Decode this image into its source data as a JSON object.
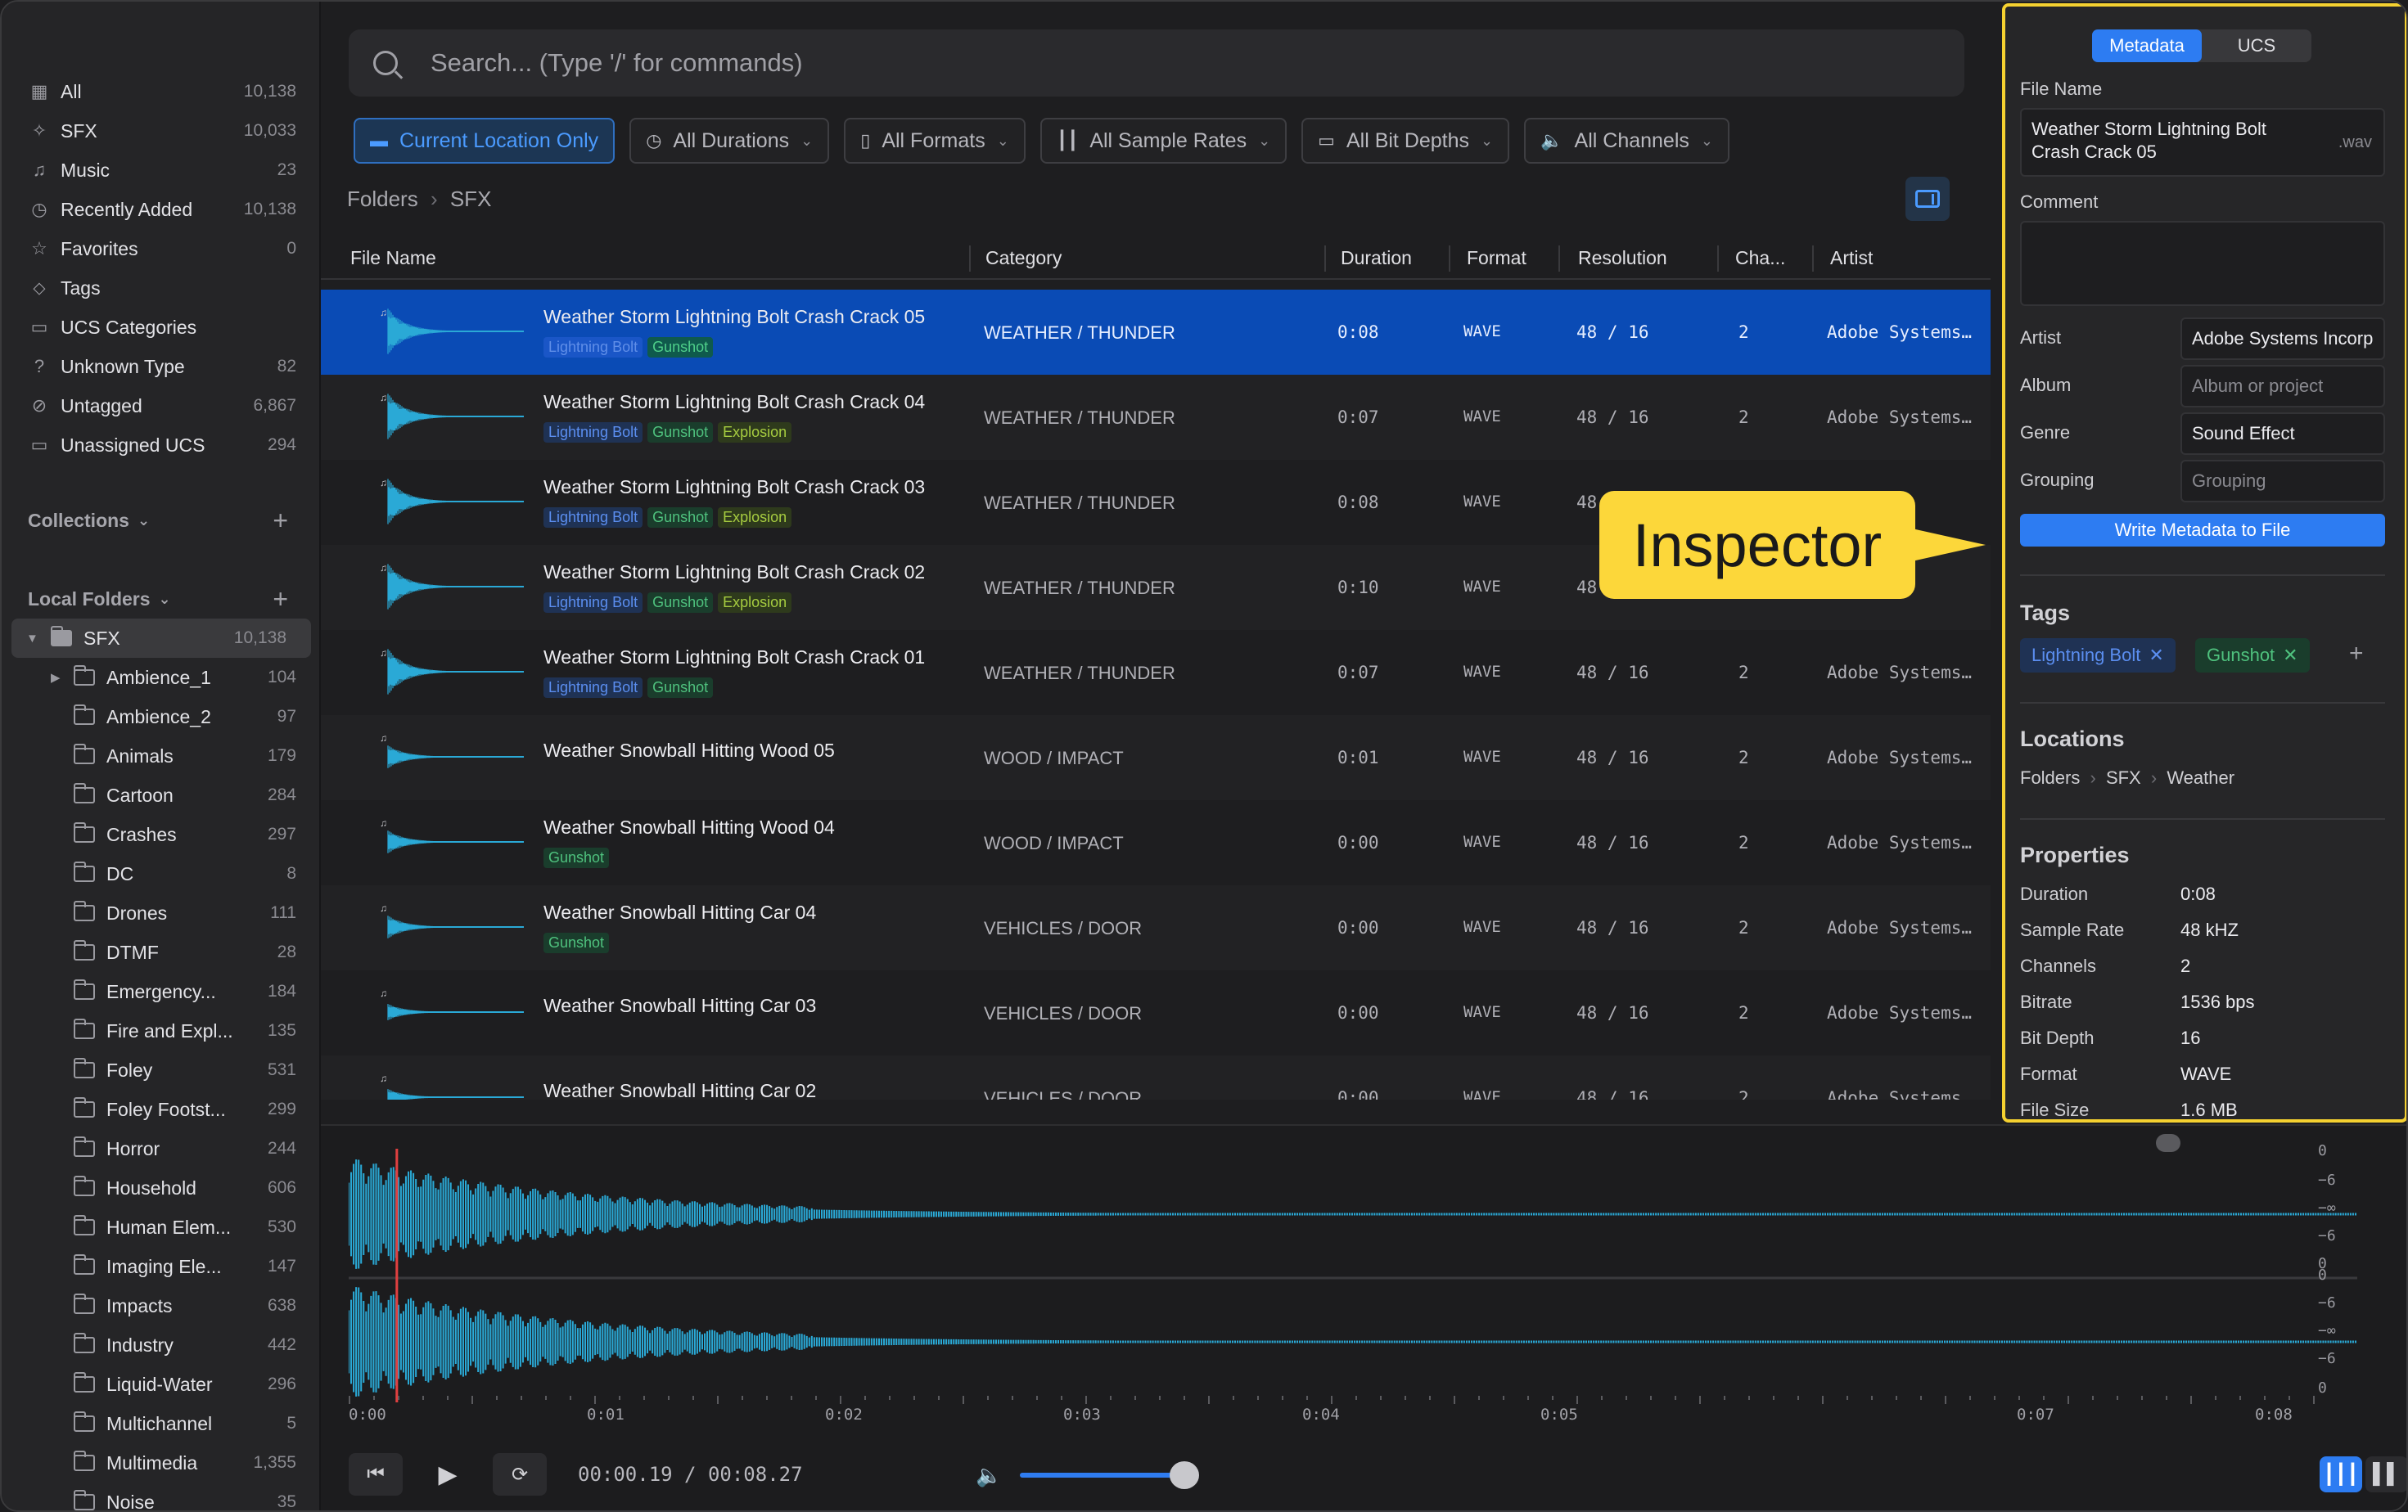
{
  "sidebar": {
    "library": [
      {
        "label": "All",
        "count": "10,138",
        "icon": "grid-icon"
      },
      {
        "label": "SFX",
        "count": "10,033",
        "icon": "sparkle-icon"
      },
      {
        "label": "Music",
        "count": "23",
        "icon": "music-note-icon"
      },
      {
        "label": "Recently Added",
        "count": "10,138",
        "icon": "clock-icon"
      },
      {
        "label": "Favorites",
        "count": "0",
        "icon": "star-icon"
      },
      {
        "label": "Tags",
        "count": "",
        "icon": "tag-icon"
      },
      {
        "label": "UCS Categories",
        "count": "",
        "icon": "folder-icon"
      },
      {
        "label": "Unknown Type",
        "count": "82",
        "icon": "question-icon"
      },
      {
        "label": "Untagged",
        "count": "6,867",
        "icon": "untag-icon"
      },
      {
        "label": "Unassigned UCS",
        "count": "294",
        "icon": "folder-icon"
      }
    ],
    "collections_label": "Collections",
    "local_folders_label": "Local Folders",
    "root_folder": {
      "label": "SFX",
      "count": "10,138"
    },
    "folders": [
      {
        "label": "Ambience_1",
        "count": "104"
      },
      {
        "label": "Ambience_2",
        "count": "97"
      },
      {
        "label": "Animals",
        "count": "179"
      },
      {
        "label": "Cartoon",
        "count": "284"
      },
      {
        "label": "Crashes",
        "count": "297"
      },
      {
        "label": "DC",
        "count": "8"
      },
      {
        "label": "Drones",
        "count": "111"
      },
      {
        "label": "DTMF",
        "count": "28"
      },
      {
        "label": "Emergency...",
        "count": "184"
      },
      {
        "label": "Fire and Expl...",
        "count": "135"
      },
      {
        "label": "Foley",
        "count": "531"
      },
      {
        "label": "Foley Footst...",
        "count": "299"
      },
      {
        "label": "Horror",
        "count": "244"
      },
      {
        "label": "Household",
        "count": "606"
      },
      {
        "label": "Human Elem...",
        "count": "530"
      },
      {
        "label": "Imaging Ele...",
        "count": "147"
      },
      {
        "label": "Impacts",
        "count": "638"
      },
      {
        "label": "Industry",
        "count": "442"
      },
      {
        "label": "Liquid-Water",
        "count": "296"
      },
      {
        "label": "Multichannel",
        "count": "5"
      },
      {
        "label": "Multimedia",
        "count": "1,355"
      },
      {
        "label": "Noise",
        "count": "35"
      }
    ]
  },
  "search": {
    "placeholder": "Search... (Type '/' for commands)"
  },
  "filters": [
    "Current Location Only",
    "All Durations",
    "All Formats",
    "All Sample Rates",
    "All Bit Depths",
    "All Channels"
  ],
  "breadcrumb": {
    "root": "Folders",
    "current": "SFX"
  },
  "columns": {
    "file_name": "File Name",
    "category": "Category",
    "duration": "Duration",
    "format": "Format",
    "resolution": "Resolution",
    "channels": "Cha...",
    "artist": "Artist"
  },
  "rows": [
    {
      "name": "Weather Storm Lightning Bolt Crash Crack 05",
      "tags": [
        "Lightning Bolt",
        "Gunshot"
      ],
      "category": "WEATHER / THUNDER",
      "duration": "0:08",
      "format": "WAVE",
      "resolution": "48 / 16",
      "channels": "2",
      "artist": "Adobe Systems…"
    },
    {
      "name": "Weather Storm Lightning Bolt Crash Crack 04",
      "tags": [
        "Lightning Bolt",
        "Gunshot",
        "Explosion"
      ],
      "category": "WEATHER / THUNDER",
      "duration": "0:07",
      "format": "WAVE",
      "resolution": "48 / 16",
      "channels": "2",
      "artist": "Adobe Systems…"
    },
    {
      "name": "Weather Storm Lightning Bolt Crash Crack 03",
      "tags": [
        "Lightning Bolt",
        "Gunshot",
        "Explosion"
      ],
      "category": "WEATHER / THUNDER",
      "duration": "0:08",
      "format": "WAVE",
      "resolution": "48",
      "channels": "",
      "artist": "stems…"
    },
    {
      "name": "Weather Storm Lightning Bolt Crash Crack 02",
      "tags": [
        "Lightning Bolt",
        "Gunshot",
        "Explosion"
      ],
      "category": "WEATHER / THUNDER",
      "duration": "0:10",
      "format": "WAVE",
      "resolution": "48",
      "channels": "",
      "artist": "stems…"
    },
    {
      "name": "Weather Storm Lightning Bolt Crash Crack 01",
      "tags": [
        "Lightning Bolt",
        "Gunshot"
      ],
      "category": "WEATHER / THUNDER",
      "duration": "0:07",
      "format": "WAVE",
      "resolution": "48 / 16",
      "channels": "2",
      "artist": "Adobe Systems…"
    },
    {
      "name": "Weather Snowball Hitting Wood 05",
      "tags": [],
      "category": "WOOD / IMPACT",
      "duration": "0:01",
      "format": "WAVE",
      "resolution": "48 / 16",
      "channels": "2",
      "artist": "Adobe Systems…"
    },
    {
      "name": "Weather Snowball Hitting Wood 04",
      "tags": [
        "Gunshot"
      ],
      "category": "WOOD / IMPACT",
      "duration": "0:00",
      "format": "WAVE",
      "resolution": "48 / 16",
      "channels": "2",
      "artist": "Adobe Systems…"
    },
    {
      "name": "Weather Snowball Hitting Car 04",
      "tags": [
        "Gunshot"
      ],
      "category": "VEHICLES / DOOR",
      "duration": "0:00",
      "format": "WAVE",
      "resolution": "48 / 16",
      "channels": "2",
      "artist": "Adobe Systems…"
    },
    {
      "name": "Weather Snowball Hitting Car 03",
      "tags": [],
      "category": "VEHICLES / DOOR",
      "duration": "0:00",
      "format": "WAVE",
      "resolution": "48 / 16",
      "channels": "2",
      "artist": "Adobe Systems…"
    },
    {
      "name": "Weather Snowball Hitting Car 02",
      "tags": [],
      "category": "VEHICLES / DOOR",
      "duration": "0:00",
      "format": "WAVE",
      "resolution": "48 / 16",
      "channels": "2",
      "artist": "Adobe Systems…"
    }
  ],
  "callout": "Inspector",
  "inspector": {
    "tab_metadata": "Metadata",
    "tab_ucs": "UCS",
    "file_name_label": "File Name",
    "file_name": "Weather Storm Lightning Bolt Crash Crack 05",
    "file_ext": ".wav",
    "comment_label": "Comment",
    "artist_label": "Artist",
    "artist": "Adobe Systems Incorp",
    "album_label": "Album",
    "album_placeholder": "Album or project",
    "genre_label": "Genre",
    "genre": "Sound Effect",
    "grouping_label": "Grouping",
    "grouping_placeholder": "Grouping",
    "write_button": "Write Metadata to File",
    "tags_header": "Tags",
    "tags": [
      "Lightning Bolt",
      "Gunshot"
    ],
    "locations_header": "Locations",
    "location": [
      "Folders",
      "SFX",
      "Weather"
    ],
    "properties_header": "Properties",
    "properties": [
      {
        "k": "Duration",
        "v": "0:08"
      },
      {
        "k": "Sample Rate",
        "v": "48 kHZ"
      },
      {
        "k": "Channels",
        "v": "2"
      },
      {
        "k": "Bitrate",
        "v": "1536 bps"
      },
      {
        "k": "Bit Depth",
        "v": "16"
      },
      {
        "k": "Format",
        "v": "WAVE"
      },
      {
        "k": "File Size",
        "v": "1.6 MB"
      }
    ]
  },
  "player": {
    "time_ticks": [
      "0:00",
      "0:01",
      "0:02",
      "0:03",
      "0:04",
      "0:05",
      "0:07",
      "0:08"
    ],
    "db_scale": [
      "0",
      "−6",
      "−∞",
      "−6",
      "0",
      "0",
      "−6",
      "−∞",
      "−6",
      "0"
    ],
    "position": "00:00.19",
    "total": "00:08.27",
    "separator": "/",
    "volume": 0.85
  },
  "colors": {
    "accent": "#2d7cf2",
    "selected_row": "#0a4bb5",
    "waveform": "#2aa9d6",
    "callout": "#fcd73a"
  }
}
